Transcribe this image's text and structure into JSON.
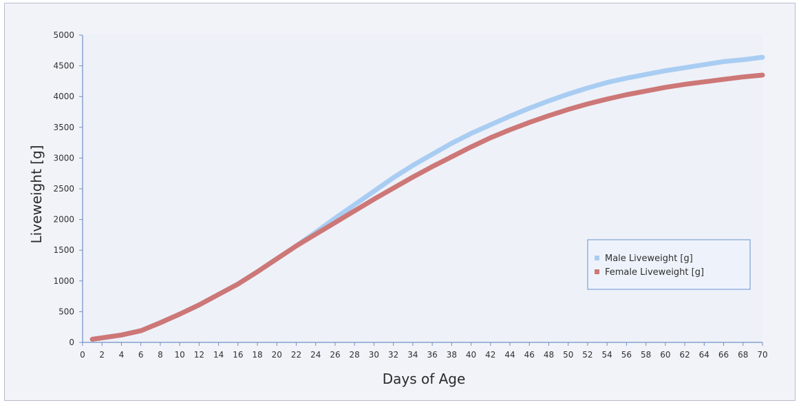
{
  "chart_data": {
    "type": "line",
    "title": "",
    "xlabel": "Days of Age",
    "ylabel": "Liveweight [g]",
    "xlim": [
      0,
      70
    ],
    "ylim": [
      0,
      5000
    ],
    "x_ticks": [
      0,
      2,
      4,
      6,
      8,
      10,
      12,
      14,
      16,
      18,
      20,
      22,
      24,
      26,
      28,
      30,
      32,
      34,
      36,
      38,
      40,
      42,
      44,
      46,
      48,
      50,
      52,
      54,
      56,
      58,
      60,
      62,
      64,
      66,
      68,
      70
    ],
    "y_ticks": [
      0,
      500,
      1000,
      1500,
      2000,
      2500,
      3000,
      3500,
      4000,
      4500,
      5000
    ],
    "grid": false,
    "legend_position": "right",
    "series": [
      {
        "name": "Male Liveweight [g]",
        "color": "#a9cdf2",
        "x": [
          1,
          4,
          6,
          8,
          10,
          12,
          14,
          16,
          18,
          20,
          22,
          24,
          26,
          28,
          30,
          32,
          34,
          36,
          38,
          40,
          42,
          44,
          46,
          48,
          50,
          52,
          54,
          56,
          58,
          60,
          62,
          64,
          66,
          68,
          70
        ],
        "y": [
          50,
          120,
          190,
          320,
          460,
          610,
          780,
          950,
          1150,
          1360,
          1570,
          1790,
          2020,
          2240,
          2460,
          2680,
          2880,
          3060,
          3240,
          3400,
          3540,
          3680,
          3810,
          3930,
          4040,
          4140,
          4230,
          4300,
          4360,
          4420,
          4470,
          4520,
          4570,
          4600,
          4640
        ]
      },
      {
        "name": "Female Liveweight [g]",
        "color": "#cd7777",
        "x": [
          1,
          4,
          6,
          8,
          10,
          12,
          14,
          16,
          18,
          20,
          22,
          24,
          26,
          28,
          30,
          32,
          34,
          36,
          38,
          40,
          42,
          44,
          46,
          48,
          50,
          52,
          54,
          56,
          58,
          60,
          62,
          64,
          66,
          68,
          70
        ],
        "y": [
          50,
          120,
          190,
          320,
          460,
          610,
          780,
          950,
          1150,
          1360,
          1570,
          1760,
          1950,
          2140,
          2330,
          2510,
          2690,
          2860,
          3020,
          3180,
          3330,
          3460,
          3580,
          3690,
          3790,
          3880,
          3960,
          4030,
          4090,
          4150,
          4200,
          4240,
          4280,
          4320,
          4350
        ]
      }
    ]
  }
}
